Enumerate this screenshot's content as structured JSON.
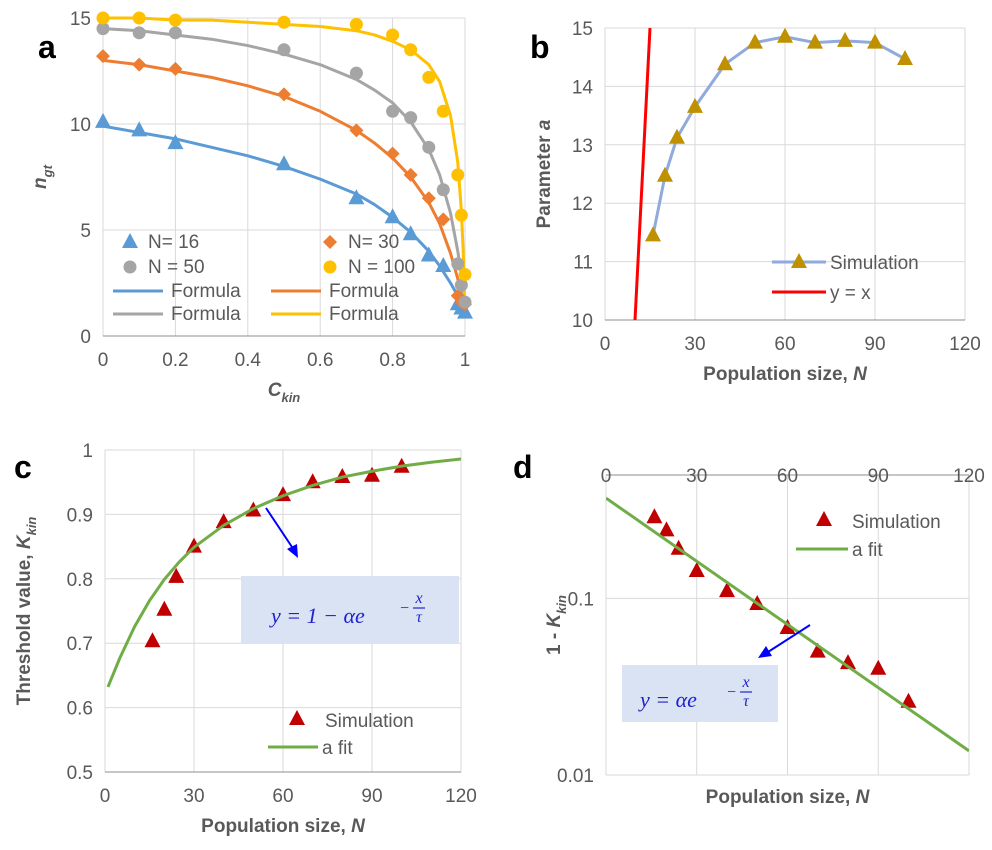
{
  "chart_data": [
    {
      "panel": "a",
      "type": "scatter",
      "ylabel": "n",
      "ylabel_sub": "gt",
      "xlabel": "C",
      "xlabel_sub": "kin",
      "xlim": [
        0,
        1
      ],
      "ylim": [
        0,
        15
      ],
      "xticks": [
        "0",
        "0.2",
        "0.4",
        "0.6",
        "0.8",
        "1"
      ],
      "yticks": [
        "0",
        "5",
        "10",
        "15"
      ],
      "grid": true,
      "legend_position": "bottom-left",
      "series": [
        {
          "name": "N= 16",
          "marker": "triangle",
          "color": "#5b9bd5",
          "x": [
            0,
            0.1,
            0.2,
            0.5,
            0.7,
            0.8,
            0.85,
            0.9,
            0.94,
            0.98,
            0.99,
            1.0
          ],
          "y": [
            10.1,
            9.7,
            9.1,
            8.1,
            6.5,
            5.6,
            4.8,
            3.8,
            3.3,
            1.5,
            1.3,
            1.1
          ]
        },
        {
          "name": "N= 30",
          "marker": "diamond",
          "color": "#ed7d31",
          "x": [
            0,
            0.1,
            0.2,
            0.5,
            0.7,
            0.8,
            0.85,
            0.9,
            0.94,
            0.98,
            0.99,
            1.0
          ],
          "y": [
            13.2,
            12.8,
            12.6,
            11.4,
            9.7,
            8.6,
            7.6,
            6.5,
            5.5,
            1.9,
            1.6,
            1.5
          ]
        },
        {
          "name": "N = 50",
          "marker": "circle",
          "color": "#a5a5a5",
          "x": [
            0,
            0.1,
            0.2,
            0.5,
            0.7,
            0.8,
            0.85,
            0.9,
            0.94,
            0.98,
            0.99,
            1.0
          ],
          "y": [
            14.5,
            14.3,
            14.3,
            13.5,
            12.4,
            10.6,
            10.3,
            8.9,
            6.9,
            3.4,
            2.4,
            1.6
          ]
        },
        {
          "name": "N = 100",
          "marker": "circle",
          "color": "#ffc000",
          "x": [
            0,
            0.1,
            0.2,
            0.5,
            0.7,
            0.8,
            0.85,
            0.9,
            0.94,
            0.98,
            0.99,
            1.0
          ],
          "y": [
            15.0,
            15.0,
            14.9,
            14.8,
            14.7,
            14.2,
            13.5,
            12.2,
            10.6,
            7.6,
            5.7,
            2.9
          ]
        }
      ],
      "fits": [
        {
          "name": "Formula",
          "color": "#5b9bd5",
          "a": 10,
          "x": [
            0,
            0.1,
            0.2,
            0.3,
            0.4,
            0.5,
            0.6,
            0.7,
            0.75,
            0.8,
            0.85,
            0.9,
            0.93,
            0.96,
            0.98,
            0.99,
            0.995,
            1.0
          ],
          "y": [
            9.9,
            9.6,
            9.3,
            8.9,
            8.5,
            8.0,
            7.4,
            6.7,
            6.2,
            5.6,
            4.9,
            4.0,
            3.3,
            2.5,
            1.9,
            1.5,
            1.3,
            1.0
          ]
        },
        {
          "name": "Formula",
          "color": "#ed7d31",
          "a": 13,
          "x": [
            0,
            0.1,
            0.2,
            0.3,
            0.4,
            0.5,
            0.6,
            0.7,
            0.75,
            0.8,
            0.85,
            0.9,
            0.93,
            0.96,
            0.98,
            0.99,
            0.995,
            1.0
          ],
          "y": [
            13.0,
            12.8,
            12.5,
            12.2,
            11.8,
            11.3,
            10.6,
            9.7,
            9.1,
            8.4,
            7.5,
            6.3,
            5.3,
            3.9,
            2.7,
            2.0,
            1.6,
            1.0
          ]
        },
        {
          "name": "Formula",
          "color": "#a5a5a5",
          "a": 14.5,
          "x": [
            0,
            0.1,
            0.2,
            0.3,
            0.4,
            0.5,
            0.6,
            0.7,
            0.75,
            0.8,
            0.85,
            0.9,
            0.93,
            0.96,
            0.98,
            0.99,
            0.995,
            1.0
          ],
          "y": [
            14.5,
            14.4,
            14.2,
            14.0,
            13.7,
            13.3,
            12.8,
            12.1,
            11.6,
            11.0,
            10.1,
            8.8,
            7.6,
            5.8,
            4.0,
            2.9,
            2.1,
            1.0
          ]
        },
        {
          "name": "Formula",
          "color": "#ffc000",
          "a": 15,
          "x": [
            0,
            0.1,
            0.2,
            0.3,
            0.4,
            0.5,
            0.6,
            0.7,
            0.75,
            0.8,
            0.85,
            0.9,
            0.93,
            0.96,
            0.98,
            0.99,
            0.995,
            1.0
          ],
          "y": [
            15.0,
            15.0,
            14.9,
            14.9,
            14.8,
            14.7,
            14.6,
            14.4,
            14.2,
            13.9,
            13.5,
            12.8,
            12.0,
            10.4,
            8.2,
            5.9,
            4.0,
            1.0
          ]
        }
      ]
    },
    {
      "panel": "b",
      "type": "line",
      "ylabel": "Parameter ",
      "ylabel_var": "a",
      "xlabel": "Population size, ",
      "xlabel_var": "N",
      "xlim": [
        0,
        120
      ],
      "ylim": [
        10,
        15
      ],
      "xticks": [
        "0",
        "30",
        "60",
        "90",
        "120"
      ],
      "yticks": [
        "10",
        "11",
        "12",
        "13",
        "14",
        "15"
      ],
      "grid": true,
      "legend_position": "bottom-right",
      "series": [
        {
          "name": "Simulation",
          "marker": "triangle",
          "color": "#8faadc",
          "marker_color": "#bf9000",
          "x": [
            16,
            20,
            24,
            30,
            40,
            50,
            60,
            70,
            80,
            90,
            100
          ],
          "y": [
            11.45,
            12.47,
            13.12,
            13.65,
            14.38,
            14.75,
            14.85,
            14.75,
            14.78,
            14.75,
            14.47
          ]
        },
        {
          "name": "y = x",
          "color": "#ff0000",
          "x": [
            10,
            15
          ],
          "y": [
            10,
            15
          ]
        }
      ]
    },
    {
      "panel": "c",
      "type": "scatter",
      "ylabel": "Threshold value, ",
      "ylabel_var": "K",
      "ylabel_sub": "kin",
      "xlabel": "Population size, ",
      "xlabel_var": "N",
      "xlim": [
        0,
        120
      ],
      "ylim": [
        0.5,
        1
      ],
      "xticks": [
        "0",
        "30",
        "60",
        "90",
        "120"
      ],
      "yticks": [
        "0.5",
        "0.6",
        "0.7",
        "0.8",
        "0.9",
        "1"
      ],
      "grid": true,
      "legend_position": "bottom-right",
      "equation": {
        "lhs": "y = 1 − αe",
        "exp_sign": "−",
        "exp_num": "x",
        "exp_den": "τ"
      },
      "series": [
        {
          "name": "Simulation",
          "marker": "triangle",
          "color": "#c00000",
          "x": [
            16,
            20,
            24,
            30,
            40,
            50,
            60,
            70,
            80,
            90,
            100
          ],
          "y": [
            0.703,
            0.752,
            0.803,
            0.85,
            0.888,
            0.906,
            0.93,
            0.95,
            0.958,
            0.96,
            0.974
          ]
        },
        {
          "name": "a fit",
          "color": "#70ad47",
          "x": [
            1,
            5,
            10,
            15,
            20,
            25,
            30,
            40,
            50,
            60,
            70,
            80,
            90,
            100,
            110,
            120
          ],
          "y": [
            0.632,
            0.677,
            0.726,
            0.766,
            0.799,
            0.826,
            0.849,
            0.883,
            0.909,
            0.929,
            0.945,
            0.958,
            0.967,
            0.975,
            0.981,
            0.986
          ]
        }
      ]
    },
    {
      "panel": "d",
      "type": "scatter",
      "ylabel": "1 - ",
      "ylabel_var": "K",
      "ylabel_sub": "kin",
      "xlabel": "Population size, ",
      "xlabel_var": "N",
      "xlim": [
        0,
        120
      ],
      "ylim": [
        0.01,
        0.5
      ],
      "yscale": "log",
      "xticks": [
        "0",
        "30",
        "60",
        "90",
        "120"
      ],
      "yticks": [
        "0.01",
        "0.1"
      ],
      "grid": true,
      "legend_position": "top-right",
      "equation": {
        "lhs": "y = αe",
        "exp_sign": "−",
        "exp_num": "x",
        "exp_den": "τ"
      },
      "series": [
        {
          "name": "Simulation",
          "marker": "triangle",
          "color": "#c00000",
          "x": [
            16,
            20,
            24,
            30,
            40,
            50,
            60,
            70,
            80,
            90,
            100
          ],
          "y": [
            0.288,
            0.243,
            0.191,
            0.143,
            0.11,
            0.093,
            0.068,
            0.05,
            0.043,
            0.04,
            0.026
          ]
        },
        {
          "name": "a fit",
          "color": "#70ad47",
          "x": [
            0,
            120
          ],
          "y": [
            0.37,
            0.0137
          ]
        }
      ]
    }
  ]
}
